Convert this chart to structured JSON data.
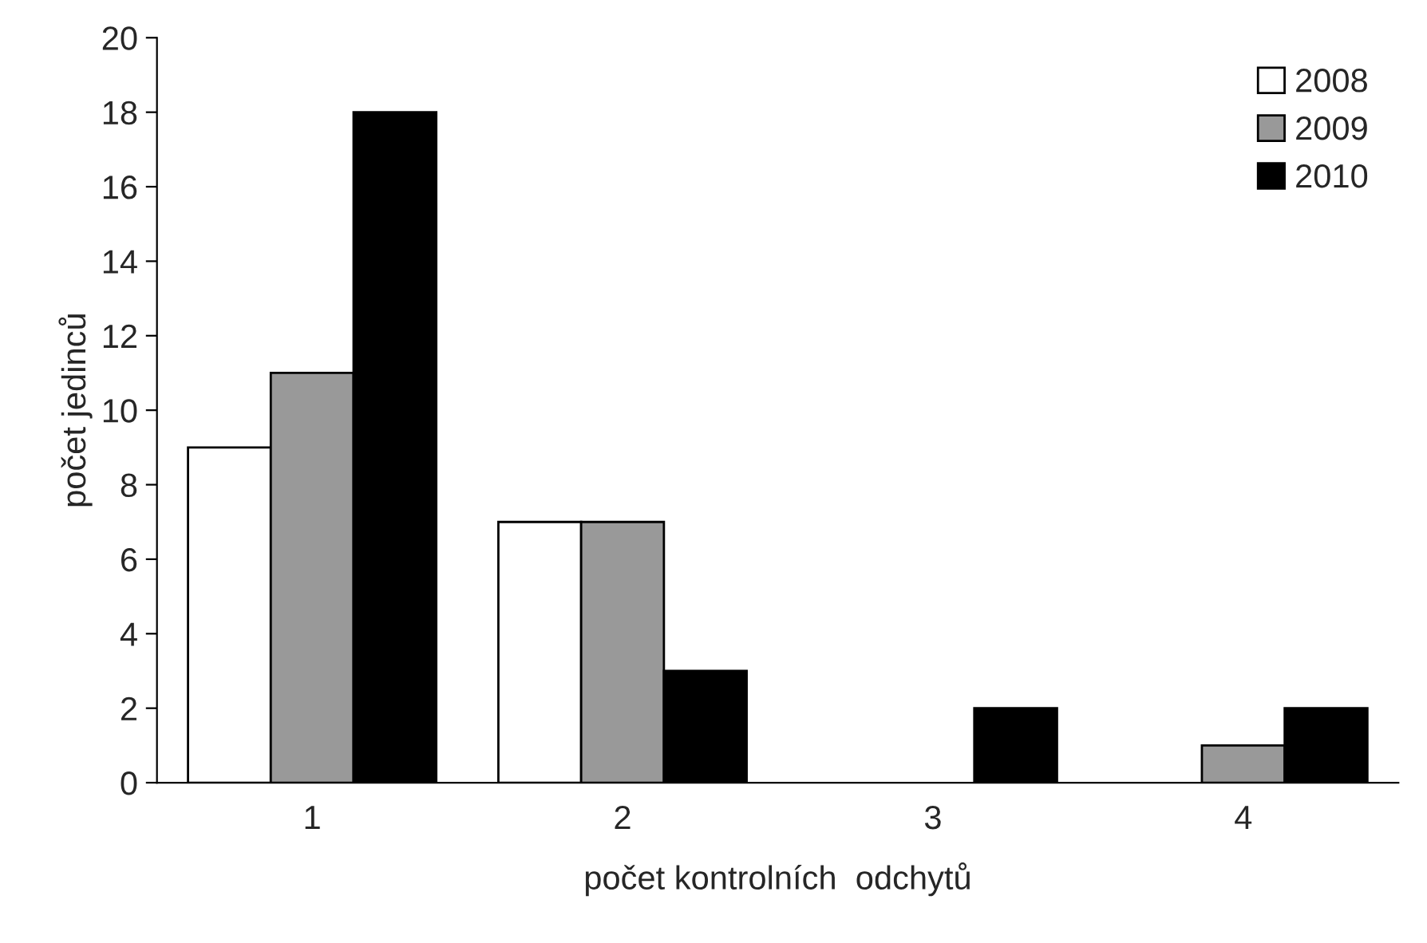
{
  "chart_data": {
    "type": "bar",
    "xlabel": "počet kontrolních  odchytů",
    "ylabel": "počet jedinců",
    "categories": [
      "1",
      "2",
      "3",
      "4"
    ],
    "series": [
      {
        "name": "2008",
        "color": "#ffffff",
        "values": [
          9,
          7,
          0,
          0
        ]
      },
      {
        "name": "2009",
        "color": "#999999",
        "values": [
          11,
          7,
          0,
          1
        ]
      },
      {
        "name": "2010",
        "color": "#000000",
        "values": [
          18,
          3,
          2,
          2
        ]
      }
    ],
    "ylim": [
      0,
      20
    ],
    "yticks": [
      0,
      2,
      4,
      6,
      8,
      10,
      12,
      14,
      16,
      18,
      20
    ],
    "grid": false,
    "legend": "top right"
  }
}
